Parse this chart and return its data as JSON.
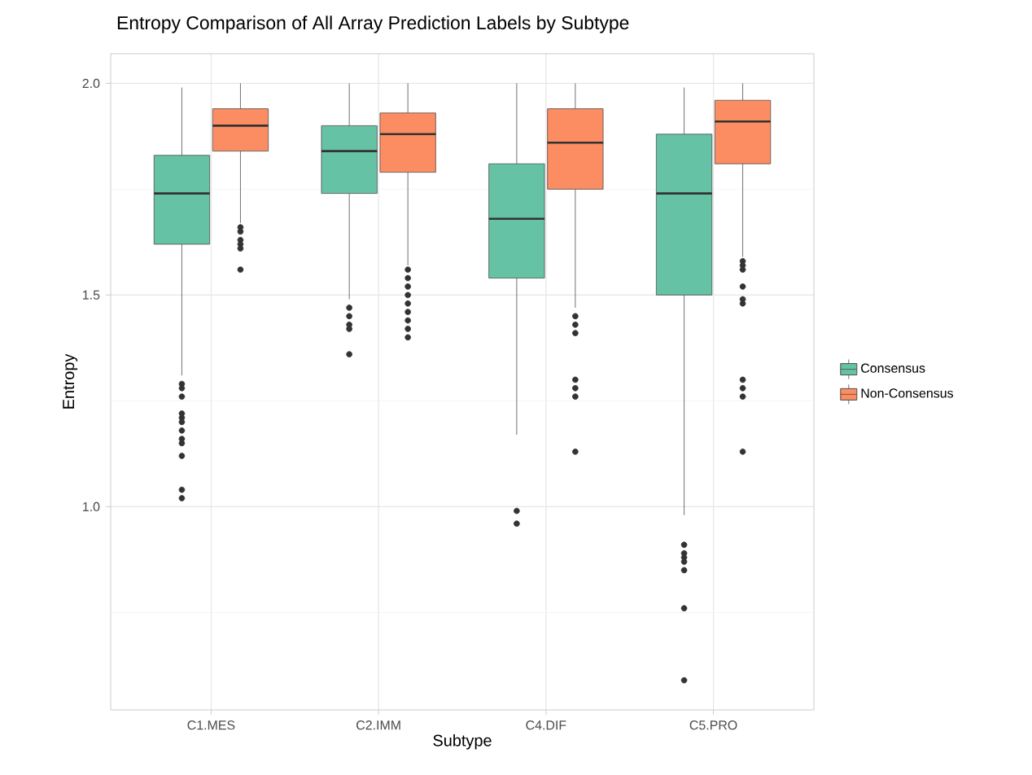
{
  "chart_data": {
    "type": "box",
    "title": "Entropy Comparison of All Array Prediction Labels by Subtype",
    "xlabel": "Subtype",
    "ylabel": "Entropy",
    "categories": [
      "C1.MES",
      "C2.IMM",
      "C4.DIF",
      "C5.PRO"
    ],
    "series": [
      {
        "name": "Consensus",
        "color": "#66c2a5",
        "boxes": [
          {
            "low": 1.31,
            "q1": 1.62,
            "median": 1.74,
            "q3": 1.83,
            "high": 1.99,
            "outliers": [
              1.29,
              1.28,
              1.26,
              1.22,
              1.21,
              1.2,
              1.18,
              1.16,
              1.15,
              1.12,
              1.04,
              1.02
            ]
          },
          {
            "low": 1.49,
            "q1": 1.74,
            "median": 1.84,
            "q3": 1.9,
            "high": 2.0,
            "outliers": [
              1.47,
              1.45,
              1.43,
              1.42,
              1.36
            ]
          },
          {
            "low": 1.17,
            "q1": 1.54,
            "median": 1.68,
            "q3": 1.81,
            "high": 2.0,
            "outliers": [
              0.99,
              0.96
            ]
          },
          {
            "low": 0.98,
            "q1": 1.5,
            "median": 1.74,
            "q3": 1.88,
            "high": 1.99,
            "outliers": [
              0.91,
              0.89,
              0.88,
              0.87,
              0.85,
              0.76,
              0.59
            ]
          }
        ]
      },
      {
        "name": "Non-Consensus",
        "color": "#fc8d62",
        "boxes": [
          {
            "low": 1.67,
            "q1": 1.84,
            "median": 1.9,
            "q3": 1.94,
            "high": 2.0,
            "outliers": [
              1.66,
              1.65,
              1.63,
              1.62,
              1.61,
              1.56
            ]
          },
          {
            "low": 1.57,
            "q1": 1.79,
            "median": 1.88,
            "q3": 1.93,
            "high": 2.0,
            "outliers": [
              1.56,
              1.54,
              1.52,
              1.5,
              1.48,
              1.46,
              1.44,
              1.42,
              1.4
            ]
          },
          {
            "low": 1.47,
            "q1": 1.75,
            "median": 1.86,
            "q3": 1.94,
            "high": 2.0,
            "outliers": [
              1.45,
              1.43,
              1.41,
              1.3,
              1.28,
              1.26,
              1.13
            ]
          },
          {
            "low": 1.59,
            "q1": 1.81,
            "median": 1.91,
            "q3": 1.96,
            "high": 2.0,
            "outliers": [
              1.58,
              1.57,
              1.56,
              1.52,
              1.49,
              1.48,
              1.3,
              1.28,
              1.26,
              1.13
            ]
          }
        ]
      }
    ],
    "ylim": [
      0.52,
      2.07
    ],
    "yticks": [
      {
        "value": 1.0,
        "label": "1.0"
      },
      {
        "value": 1.5,
        "label": "1.5"
      },
      {
        "value": 2.0,
        "label": "2.0"
      }
    ],
    "grid": true,
    "legend": "right"
  }
}
